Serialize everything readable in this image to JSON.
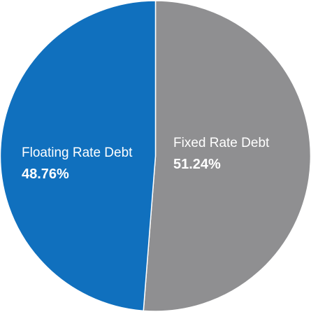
{
  "chart_data": {
    "type": "pie",
    "title": "",
    "slices": [
      {
        "label": "Fixed Rate Debt",
        "value_text": "51.24%",
        "value": 51.24,
        "color": "#8f8f91"
      },
      {
        "label": "Floating Rate Debt",
        "value_text": "48.76%",
        "value": 48.76,
        "color": "#1070be"
      }
    ],
    "start_angle_deg": 0,
    "direction": "clockwise",
    "legend": "none",
    "separator_color": "#ffffff"
  }
}
